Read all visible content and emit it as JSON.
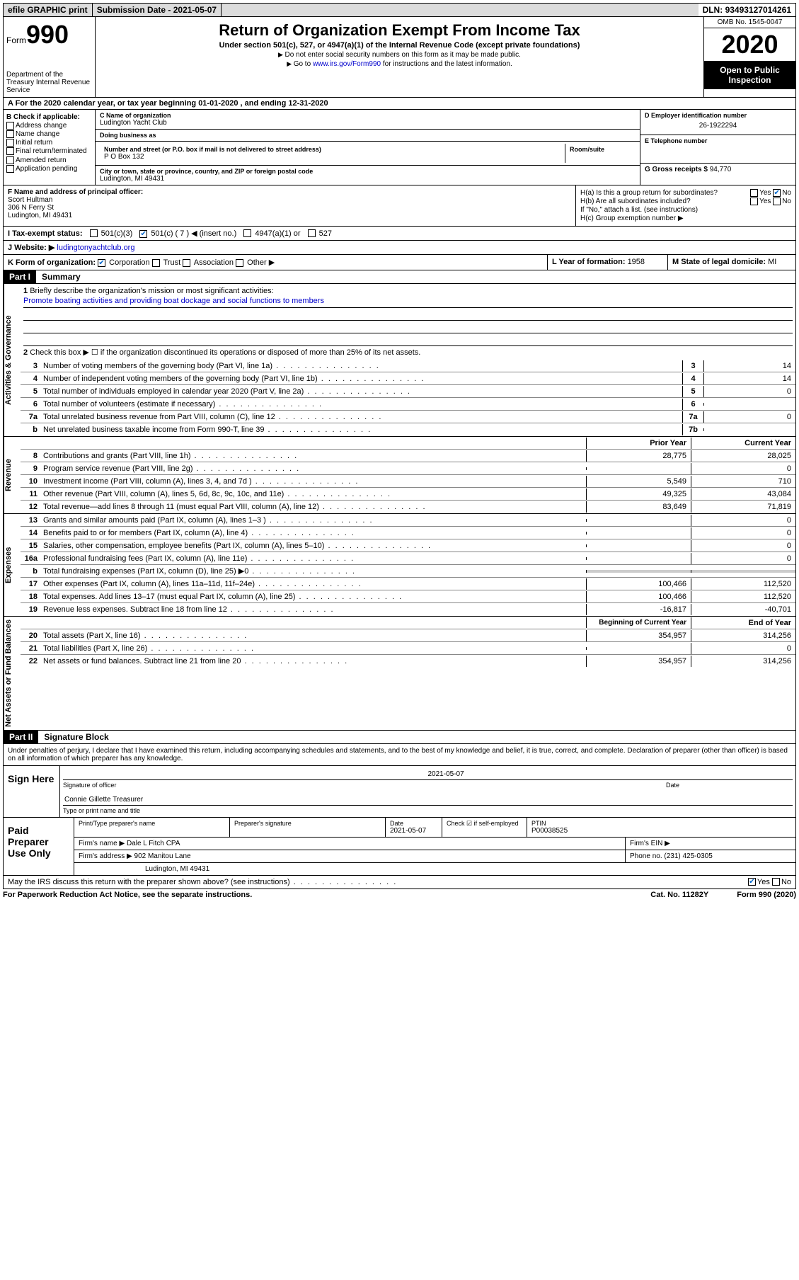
{
  "topbar": {
    "efile": "efile GRAPHIC print",
    "subdate_label": "Submission Date - ",
    "subdate": "2021-05-07",
    "dln_label": "DLN: ",
    "dln": "93493127014261"
  },
  "header": {
    "form_label": "Form",
    "form_num": "990",
    "dept": "Department of the Treasury\nInternal Revenue Service",
    "title": "Return of Organization Exempt From Income Tax",
    "subtitle": "Under section 501(c), 527, or 4947(a)(1) of the Internal Revenue Code (except private foundations)",
    "note1": "Do not enter social security numbers on this form as it may be made public.",
    "note2_pre": "Go to ",
    "note2_link": "www.irs.gov/Form990",
    "note2_post": " for instructions and the latest information.",
    "omb": "OMB No. 1545-0047",
    "year": "2020",
    "inspect": "Open to Public Inspection"
  },
  "lineA": "A For the 2020 calendar year, or tax year beginning 01-01-2020    , and ending 12-31-2020",
  "colB": {
    "title": "B Check if applicable:",
    "items": [
      "Address change",
      "Name change",
      "Initial return",
      "Final return/terminated",
      "Amended return",
      "Application pending"
    ]
  },
  "colC": {
    "name_label": "C Name of organization",
    "name": "Ludington Yacht Club",
    "dba_label": "Doing business as",
    "dba": "",
    "street_label": "Number and street (or P.O. box if mail is not delivered to street address)",
    "room_label": "Room/suite",
    "street": "P O Box 132",
    "city_label": "City or town, state or province, country, and ZIP or foreign postal code",
    "city": "Ludington, MI  49431"
  },
  "colD": {
    "ein_label": "D Employer identification number",
    "ein": "26-1922294",
    "phone_label": "E Telephone number",
    "phone": "",
    "gross_label": "G Gross receipts $ ",
    "gross": "94,770"
  },
  "colF": {
    "label": "F  Name and address of principal officer:",
    "name": "Scort Hultman",
    "street": "306 N Ferry St",
    "city": "Ludington, MI  49431"
  },
  "colH": {
    "ha": "H(a)  Is this a group return for subordinates?",
    "hb": "H(b)  Are all subordinates included?",
    "hb_note": "If \"No,\" attach a list. (see instructions)",
    "hc": "H(c)  Group exemption number ▶",
    "yes": "Yes",
    "no": "No"
  },
  "lineI": {
    "label": "I   Tax-exempt status:",
    "opts": [
      "501(c)(3)",
      "501(c) ( 7 ) ◀ (insert no.)",
      "4947(a)(1) or",
      "527"
    ]
  },
  "lineJ": {
    "label": "J   Website: ▶ ",
    "val": "ludingtonyachtclub.org"
  },
  "lineK": {
    "label": "K Form of organization:",
    "opts": [
      "Corporation",
      "Trust",
      "Association",
      "Other ▶"
    ],
    "l_label": "L Year of formation: ",
    "l_val": "1958",
    "m_label": "M State of legal domicile: ",
    "m_val": "MI"
  },
  "part1": {
    "hdr": "Part I",
    "title": "Summary"
  },
  "vtabs": {
    "gov": "Activities & Governance",
    "rev": "Revenue",
    "exp": "Expenses",
    "net": "Net Assets or Fund Balances"
  },
  "summary": {
    "line1_label": "Briefly describe the organization's mission or most significant activities:",
    "line1_val": "Promote boating activities and providing boat dockage and social functions to members",
    "line2": "Check this box ▶ ☐  if the organization discontinued its operations or disposed of more than 25% of its net assets.",
    "rows_gov": [
      {
        "n": "3",
        "t": "Number of voting members of the governing body (Part VI, line 1a)",
        "b": "3",
        "v": "14"
      },
      {
        "n": "4",
        "t": "Number of independent voting members of the governing body (Part VI, line 1b)",
        "b": "4",
        "v": "14"
      },
      {
        "n": "5",
        "t": "Total number of individuals employed in calendar year 2020 (Part V, line 2a)",
        "b": "5",
        "v": "0"
      },
      {
        "n": "6",
        "t": "Total number of volunteers (estimate if necessary)",
        "b": "6",
        "v": ""
      },
      {
        "n": "7a",
        "t": "Total unrelated business revenue from Part VIII, column (C), line 12",
        "b": "7a",
        "v": "0"
      },
      {
        "n": "b",
        "t": "Net unrelated business taxable income from Form 990-T, line 39",
        "b": "7b",
        "v": ""
      }
    ],
    "hdr_prior": "Prior Year",
    "hdr_curr": "Current Year",
    "rows_rev": [
      {
        "n": "8",
        "t": "Contributions and grants (Part VIII, line 1h)",
        "p": "28,775",
        "c": "28,025"
      },
      {
        "n": "9",
        "t": "Program service revenue (Part VIII, line 2g)",
        "p": "",
        "c": "0"
      },
      {
        "n": "10",
        "t": "Investment income (Part VIII, column (A), lines 3, 4, and 7d )",
        "p": "5,549",
        "c": "710"
      },
      {
        "n": "11",
        "t": "Other revenue (Part VIII, column (A), lines 5, 6d, 8c, 9c, 10c, and 11e)",
        "p": "49,325",
        "c": "43,084"
      },
      {
        "n": "12",
        "t": "Total revenue—add lines 8 through 11 (must equal Part VIII, column (A), line 12)",
        "p": "83,649",
        "c": "71,819"
      }
    ],
    "rows_exp": [
      {
        "n": "13",
        "t": "Grants and similar amounts paid (Part IX, column (A), lines 1–3 )",
        "p": "",
        "c": "0"
      },
      {
        "n": "14",
        "t": "Benefits paid to or for members (Part IX, column (A), line 4)",
        "p": "",
        "c": "0"
      },
      {
        "n": "15",
        "t": "Salaries, other compensation, employee benefits (Part IX, column (A), lines 5–10)",
        "p": "",
        "c": "0"
      },
      {
        "n": "16a",
        "t": "Professional fundraising fees (Part IX, column (A), line 11e)",
        "p": "",
        "c": "0"
      },
      {
        "n": "b",
        "t": "Total fundraising expenses (Part IX, column (D), line 25) ▶0",
        "p": "GRAY",
        "c": "GRAY"
      },
      {
        "n": "17",
        "t": "Other expenses (Part IX, column (A), lines 11a–11d, 11f–24e)",
        "p": "100,466",
        "c": "112,520"
      },
      {
        "n": "18",
        "t": "Total expenses. Add lines 13–17 (must equal Part IX, column (A), line 25)",
        "p": "100,466",
        "c": "112,520"
      },
      {
        "n": "19",
        "t": "Revenue less expenses. Subtract line 18 from line 12",
        "p": "-16,817",
        "c": "-40,701"
      }
    ],
    "hdr_beg": "Beginning of Current Year",
    "hdr_end": "End of Year",
    "rows_net": [
      {
        "n": "20",
        "t": "Total assets (Part X, line 16)",
        "p": "354,957",
        "c": "314,256"
      },
      {
        "n": "21",
        "t": "Total liabilities (Part X, line 26)",
        "p": "",
        "c": "0"
      },
      {
        "n": "22",
        "t": "Net assets or fund balances. Subtract line 21 from line 20",
        "p": "354,957",
        "c": "314,256"
      }
    ]
  },
  "part2": {
    "hdr": "Part II",
    "title": "Signature Block"
  },
  "sig": {
    "intro": "Under penalties of perjury, I declare that I have examined this return, including accompanying schedules and statements, and to the best of my knowledge and belief, it is true, correct, and complete. Declaration of preparer (other than officer) is based on all information of which preparer has any knowledge.",
    "sign_here": "Sign Here",
    "sig_officer": "Signature of officer",
    "date": "2021-05-07",
    "date_label": "Date",
    "name_title": "Connie Gillette  Treasurer",
    "name_label": "Type or print name and title",
    "paid": "Paid Preparer Use Only",
    "prep_name_label": "Print/Type preparer's name",
    "prep_sig_label": "Preparer's signature",
    "prep_date": "2021-05-07",
    "check_self": "Check ☑ if self-employed",
    "ptin_label": "PTIN",
    "ptin": "P00038525",
    "firm_name_label": "Firm's name    ▶ ",
    "firm_name": "Dale L Fitch CPA",
    "firm_ein_label": "Firm's EIN ▶",
    "firm_addr_label": "Firm's address ▶ ",
    "firm_addr1": "902 Manitou Lane",
    "firm_addr2": "Ludington, MI  49431",
    "firm_phone_label": "Phone no. ",
    "firm_phone": "(231) 425-0305"
  },
  "discuss": "May the IRS discuss this return with the preparer shown above? (see instructions)",
  "footer": {
    "left": "For Paperwork Reduction Act Notice, see the separate instructions.",
    "mid": "Cat. No. 11282Y",
    "right": "Form 990 (2020)"
  }
}
